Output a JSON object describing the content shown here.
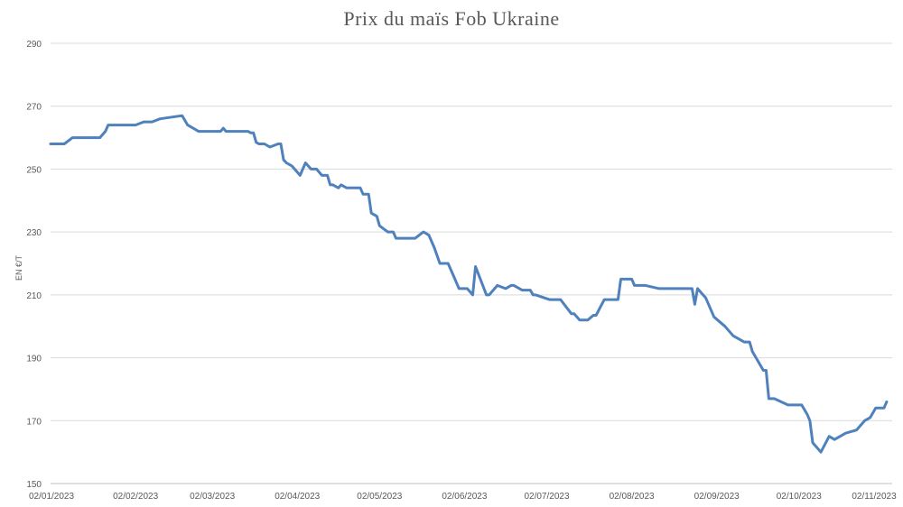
{
  "chart_data": {
    "type": "line",
    "title": "Prix du maïs Fob Ukraine",
    "xlabel": "",
    "ylabel": "EN €/T",
    "ylim": [
      150,
      290
    ],
    "yticks": [
      150,
      170,
      190,
      210,
      230,
      250,
      270,
      290
    ],
    "xlim": [
      "2023-01-02",
      "2023-11-05"
    ],
    "xticks": [
      {
        "date": "2023-01-02",
        "label": "02/01/2023"
      },
      {
        "date": "2023-02-02",
        "label": "02/02/2023"
      },
      {
        "date": "2023-03-02",
        "label": "02/03/2023"
      },
      {
        "date": "2023-04-02",
        "label": "02/04/2023"
      },
      {
        "date": "2023-05-02",
        "label": "02/05/2023"
      },
      {
        "date": "2023-06-02",
        "label": "02/06/2023"
      },
      {
        "date": "2023-07-02",
        "label": "02/07/2023"
      },
      {
        "date": "2023-08-02",
        "label": "02/08/2023"
      },
      {
        "date": "2023-09-02",
        "label": "02/09/2023"
      },
      {
        "date": "2023-10-02",
        "label": "02/10/2023"
      },
      {
        "date": "2023-11-02",
        "label": "02/11/2023"
      }
    ],
    "grid": true,
    "legend": "none",
    "line_color": "#4f81bd",
    "series": [
      {
        "x": [
          "2023-01-02",
          "2023-01-07",
          "2023-01-10",
          "2023-01-15",
          "2023-01-20",
          "2023-01-22",
          "2023-01-23",
          "2023-01-25",
          "2023-02-02",
          "2023-02-05",
          "2023-02-06",
          "2023-02-08",
          "2023-02-11",
          "2023-02-19",
          "2023-02-21",
          "2023-02-25",
          "2023-03-05",
          "2023-03-06",
          "2023-03-07",
          "2023-03-10",
          "2023-03-12",
          "2023-03-15",
          "2023-03-16",
          "2023-03-17",
          "2023-03-18",
          "2023-03-19",
          "2023-03-21",
          "2023-03-23",
          "2023-03-26",
          "2023-03-27",
          "2023-03-28",
          "2023-03-29",
          "2023-03-31",
          "2023-04-03",
          "2023-04-05",
          "2023-04-07",
          "2023-04-09",
          "2023-04-10",
          "2023-04-11",
          "2023-04-13",
          "2023-04-14",
          "2023-04-15",
          "2023-04-17",
          "2023-04-18",
          "2023-04-20",
          "2023-04-25",
          "2023-04-26",
          "2023-04-28",
          "2023-04-29",
          "2023-05-01",
          "2023-05-02",
          "2023-05-05",
          "2023-05-07",
          "2023-05-08",
          "2023-05-10",
          "2023-05-15",
          "2023-05-18",
          "2023-05-20",
          "2023-05-22",
          "2023-05-24",
          "2023-05-27",
          "2023-05-29",
          "2023-05-31",
          "2023-06-03",
          "2023-06-05",
          "2023-06-06",
          "2023-06-10",
          "2023-06-11",
          "2023-06-14",
          "2023-06-17",
          "2023-06-19",
          "2023-06-20",
          "2023-06-23",
          "2023-06-26",
          "2023-06-27",
          "2023-06-28",
          "2023-07-03",
          "2023-07-04",
          "2023-07-06",
          "2023-07-07",
          "2023-07-11",
          "2023-07-12",
          "2023-07-14",
          "2023-07-17",
          "2023-07-19",
          "2023-07-20",
          "2023-07-23",
          "2023-07-24",
          "2023-07-28",
          "2023-07-29",
          "2023-08-02",
          "2023-08-03",
          "2023-08-07",
          "2023-08-12",
          "2023-08-17",
          "2023-08-24",
          "2023-08-25",
          "2023-08-26",
          "2023-08-29",
          "2023-09-01",
          "2023-09-05",
          "2023-09-08",
          "2023-09-12",
          "2023-09-14",
          "2023-09-15",
          "2023-09-19",
          "2023-09-20",
          "2023-09-21",
          "2023-09-23",
          "2023-09-28",
          "2023-10-03",
          "2023-10-05",
          "2023-10-06",
          "2023-10-07",
          "2023-10-10",
          "2023-10-13",
          "2023-10-15",
          "2023-10-19",
          "2023-10-23",
          "2023-10-26",
          "2023-10-28",
          "2023-10-30",
          "2023-11-02",
          "2023-11-03"
        ],
        "y": [
          258,
          258,
          260,
          260,
          260,
          262,
          264,
          264,
          264,
          265,
          265,
          265,
          266,
          267,
          264,
          262,
          262,
          263,
          262,
          262,
          262,
          262,
          261.5,
          261.5,
          258.5,
          258,
          258,
          257,
          258,
          258,
          253,
          252,
          251,
          248,
          252,
          250,
          250,
          249,
          248,
          248,
          245,
          245,
          244,
          245,
          244,
          244,
          242,
          242,
          236,
          235,
          232,
          230,
          230,
          228,
          228,
          228,
          230,
          229,
          225,
          220,
          220,
          216,
          212,
          212,
          210,
          219,
          210,
          210,
          213,
          212,
          213,
          213,
          211.5,
          211.5,
          210,
          210,
          208.5,
          208.5,
          208.5,
          208.5,
          204,
          204,
          202,
          202,
          203.5,
          203.5,
          208.5,
          208.5,
          208.5,
          215,
          215,
          213,
          213,
          212,
          212,
          212,
          207,
          212,
          209,
          203,
          200,
          197,
          195,
          195,
          192,
          186,
          186,
          177,
          177,
          175,
          175,
          172,
          170,
          163,
          160,
          165,
          164,
          166,
          167,
          170,
          171,
          174,
          174,
          176
        ]
      }
    ]
  }
}
